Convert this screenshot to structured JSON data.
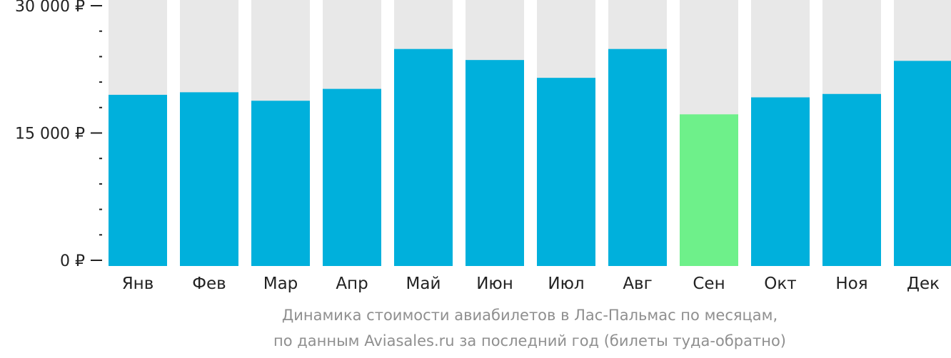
{
  "chart_data": {
    "type": "bar",
    "categories": [
      "Янв",
      "Фев",
      "Мар",
      "Апр",
      "Май",
      "Июн",
      "Июл",
      "Авг",
      "Сен",
      "Окт",
      "Ноя",
      "Дек"
    ],
    "values": [
      19500,
      19800,
      18800,
      20200,
      24900,
      23600,
      21500,
      24900,
      17200,
      19200,
      19600,
      23500
    ],
    "highlight_index": 8,
    "ylim": [
      0,
      30000
    ],
    "yticks": [
      {
        "value": 0,
        "label": "0 ₽"
      },
      {
        "value": 15000,
        "label": "15 000 ₽"
      },
      {
        "value": 30000,
        "label": "30 000 ₽"
      }
    ],
    "minor_tick_step": 3000,
    "colors": {
      "bar": "#00b0dc",
      "highlight": "#6ef08a",
      "background_bar": "#e8e8e8",
      "axis": "#222222"
    },
    "caption": [
      "Динамика стоимости авиабилетов в Лас-Пальмас по месяцам,",
      "по данным Aviasales.ru за последний год (билеты туда-обратно)"
    ],
    "grid": false,
    "legend": "none"
  }
}
